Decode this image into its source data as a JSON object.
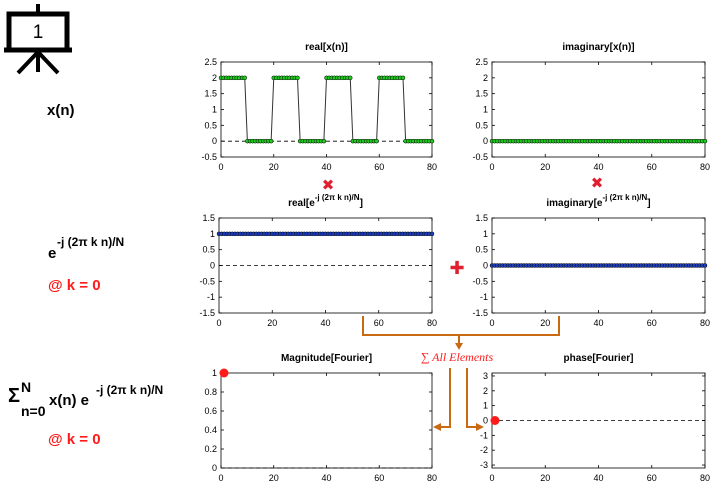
{
  "slide": {
    "number": "1"
  },
  "row_labels": {
    "signal": "x(n)",
    "kernel_base": "e",
    "kernel_exp": "-j (2π k n)/N",
    "k_note_1": "@ k = 0",
    "sum_sigma": "Σ",
    "sum_upper": "N",
    "sum_lower": "n=0",
    "sum_body": "x(n) e",
    "sum_exp": "-j (2π k n)/N",
    "k_note_2": "@ k = 0"
  },
  "operators": {
    "multiply": "✖",
    "add": "✚",
    "sum_all": "∑ All Elements"
  },
  "colors": {
    "green_marker": "#20cc20",
    "blue_marker": "#1f3fbf",
    "red_accent": "#ff1a1a",
    "arrow": "#c96a12",
    "line": "#333333"
  },
  "chart_data": [
    {
      "id": "real_x",
      "type": "line",
      "title": "real[x(n)]",
      "x_ticks": [
        "0",
        "20",
        "40",
        "60",
        "80"
      ],
      "y_ticks": [
        "2.5",
        "2",
        "1.5",
        "1",
        "0.5",
        "0",
        "-0.5"
      ],
      "xlim": [
        0,
        80
      ],
      "ylim": [
        -0.5,
        2.5
      ],
      "series": [
        {
          "x": [
            0,
            1,
            2,
            3,
            4,
            5,
            6,
            7,
            8,
            9,
            10,
            11,
            12,
            13,
            14,
            15,
            16,
            17,
            18,
            19,
            20,
            21,
            22,
            23,
            24,
            25,
            26,
            27,
            28,
            29,
            30,
            31,
            32,
            33,
            34,
            35,
            36,
            37,
            38,
            39,
            40,
            41,
            42,
            43,
            44,
            45,
            46,
            47,
            48,
            49,
            50,
            51,
            52,
            53,
            54,
            55,
            56,
            57,
            58,
            59,
            60,
            61,
            62,
            63,
            64,
            65,
            66,
            67,
            68,
            69,
            70,
            71,
            72,
            73,
            74,
            75,
            76,
            77,
            78,
            79,
            80
          ],
          "y": [
            2,
            2,
            2,
            2,
            2,
            2,
            2,
            2,
            2,
            2,
            0,
            0,
            0,
            0,
            0,
            0,
            0,
            0,
            0,
            0,
            2,
            2,
            2,
            2,
            2,
            2,
            2,
            2,
            2,
            2,
            0,
            0,
            0,
            0,
            0,
            0,
            0,
            0,
            0,
            0,
            2,
            2,
            2,
            2,
            2,
            2,
            2,
            2,
            2,
            2,
            0,
            0,
            0,
            0,
            0,
            0,
            0,
            0,
            0,
            0,
            2,
            2,
            2,
            2,
            2,
            2,
            2,
            2,
            2,
            2,
            0,
            0,
            0,
            0,
            0,
            0,
            0,
            0,
            0,
            0,
            0
          ],
          "marker": "green"
        }
      ]
    },
    {
      "id": "imag_x",
      "type": "line",
      "title": "imaginary[x(n)]",
      "x_ticks": [
        "0",
        "20",
        "40",
        "60",
        "80"
      ],
      "y_ticks": [
        "2.5",
        "2",
        "1.5",
        "1",
        "0.5",
        "0",
        "-0.5"
      ],
      "xlim": [
        0,
        80
      ],
      "ylim": [
        -0.5,
        2.5
      ],
      "series": [
        {
          "x": [
            0,
            1,
            2,
            3,
            4,
            5,
            6,
            7,
            8,
            9,
            10,
            11,
            12,
            13,
            14,
            15,
            16,
            17,
            18,
            19,
            20,
            21,
            22,
            23,
            24,
            25,
            26,
            27,
            28,
            29,
            30,
            31,
            32,
            33,
            34,
            35,
            36,
            37,
            38,
            39,
            40,
            41,
            42,
            43,
            44,
            45,
            46,
            47,
            48,
            49,
            50,
            51,
            52,
            53,
            54,
            55,
            56,
            57,
            58,
            59,
            60,
            61,
            62,
            63,
            64,
            65,
            66,
            67,
            68,
            69,
            70,
            71,
            72,
            73,
            74,
            75,
            76,
            77,
            78,
            79,
            80
          ],
          "y": [
            0,
            0,
            0,
            0,
            0,
            0,
            0,
            0,
            0,
            0,
            0,
            0,
            0,
            0,
            0,
            0,
            0,
            0,
            0,
            0,
            0,
            0,
            0,
            0,
            0,
            0,
            0,
            0,
            0,
            0,
            0,
            0,
            0,
            0,
            0,
            0,
            0,
            0,
            0,
            0,
            0,
            0,
            0,
            0,
            0,
            0,
            0,
            0,
            0,
            0,
            0,
            0,
            0,
            0,
            0,
            0,
            0,
            0,
            0,
            0,
            0,
            0,
            0,
            0,
            0,
            0,
            0,
            0,
            0,
            0,
            0,
            0,
            0,
            0,
            0,
            0,
            0,
            0,
            0,
            0,
            0
          ],
          "marker": "green"
        }
      ]
    },
    {
      "id": "real_e",
      "type": "line",
      "title_base": "real[e",
      "title_exp": "-j (2π k n)/N",
      "title_end": "]",
      "x_ticks": [
        "0",
        "20",
        "40",
        "60",
        "80"
      ],
      "y_ticks": [
        "1.5",
        "1",
        "0.5",
        "0",
        "-0.5",
        "-1",
        "-1.5"
      ],
      "xlim": [
        0,
        80
      ],
      "ylim": [
        -1.5,
        1.5
      ],
      "series": [
        {
          "x": [
            0,
            1,
            2,
            3,
            4,
            5,
            6,
            7,
            8,
            9,
            10,
            11,
            12,
            13,
            14,
            15,
            16,
            17,
            18,
            19,
            20,
            21,
            22,
            23,
            24,
            25,
            26,
            27,
            28,
            29,
            30,
            31,
            32,
            33,
            34,
            35,
            36,
            37,
            38,
            39,
            40,
            41,
            42,
            43,
            44,
            45,
            46,
            47,
            48,
            49,
            50,
            51,
            52,
            53,
            54,
            55,
            56,
            57,
            58,
            59,
            60,
            61,
            62,
            63,
            64,
            65,
            66,
            67,
            68,
            69,
            70,
            71,
            72,
            73,
            74,
            75,
            76,
            77,
            78,
            79,
            80
          ],
          "y": [
            1,
            1,
            1,
            1,
            1,
            1,
            1,
            1,
            1,
            1,
            1,
            1,
            1,
            1,
            1,
            1,
            1,
            1,
            1,
            1,
            1,
            1,
            1,
            1,
            1,
            1,
            1,
            1,
            1,
            1,
            1,
            1,
            1,
            1,
            1,
            1,
            1,
            1,
            1,
            1,
            1,
            1,
            1,
            1,
            1,
            1,
            1,
            1,
            1,
            1,
            1,
            1,
            1,
            1,
            1,
            1,
            1,
            1,
            1,
            1,
            1,
            1,
            1,
            1,
            1,
            1,
            1,
            1,
            1,
            1,
            1,
            1,
            1,
            1,
            1,
            1,
            1,
            1,
            1,
            1,
            1
          ],
          "marker": "blue"
        }
      ]
    },
    {
      "id": "imag_e",
      "type": "line",
      "title_base": "imaginary[e",
      "title_exp": "-j (2π k n)/N",
      "title_end": "]",
      "x_ticks": [
        "0",
        "20",
        "40",
        "60",
        "80"
      ],
      "y_ticks": [
        "1.5",
        "1",
        "0.5",
        "0",
        "-0.5",
        "-1",
        "-1.5"
      ],
      "xlim": [
        0,
        80
      ],
      "ylim": [
        -1.5,
        1.5
      ],
      "series": [
        {
          "x": [
            0,
            1,
            2,
            3,
            4,
            5,
            6,
            7,
            8,
            9,
            10,
            11,
            12,
            13,
            14,
            15,
            16,
            17,
            18,
            19,
            20,
            21,
            22,
            23,
            24,
            25,
            26,
            27,
            28,
            29,
            30,
            31,
            32,
            33,
            34,
            35,
            36,
            37,
            38,
            39,
            40,
            41,
            42,
            43,
            44,
            45,
            46,
            47,
            48,
            49,
            50,
            51,
            52,
            53,
            54,
            55,
            56,
            57,
            58,
            59,
            60,
            61,
            62,
            63,
            64,
            65,
            66,
            67,
            68,
            69,
            70,
            71,
            72,
            73,
            74,
            75,
            76,
            77,
            78,
            79,
            80
          ],
          "y": [
            0,
            0,
            0,
            0,
            0,
            0,
            0,
            0,
            0,
            0,
            0,
            0,
            0,
            0,
            0,
            0,
            0,
            0,
            0,
            0,
            0,
            0,
            0,
            0,
            0,
            0,
            0,
            0,
            0,
            0,
            0,
            0,
            0,
            0,
            0,
            0,
            0,
            0,
            0,
            0,
            0,
            0,
            0,
            0,
            0,
            0,
            0,
            0,
            0,
            0,
            0,
            0,
            0,
            0,
            0,
            0,
            0,
            0,
            0,
            0,
            0,
            0,
            0,
            0,
            0,
            0,
            0,
            0,
            0,
            0,
            0,
            0,
            0,
            0,
            0,
            0,
            0,
            0,
            0,
            0,
            0
          ],
          "marker": "blue"
        }
      ]
    },
    {
      "id": "magnitude",
      "type": "scatter",
      "title": "Magnitude[Fourier]",
      "x_ticks": [
        "0",
        "20",
        "40",
        "60",
        "80"
      ],
      "y_ticks": [
        "1",
        "0.8",
        "0.6",
        "0.4",
        "0.2",
        "0"
      ],
      "xlim": [
        0,
        80
      ],
      "ylim": [
        0,
        1
      ],
      "series": [
        {
          "x": [
            0
          ],
          "y": [
            1
          ],
          "marker": "red"
        }
      ]
    },
    {
      "id": "phase",
      "type": "scatter",
      "title": "phase[Fourier]",
      "x_ticks": [
        "0",
        "20",
        "40",
        "60",
        "80"
      ],
      "y_ticks": [
        "3",
        "2",
        "1",
        "0",
        "-1",
        "-2",
        "-3"
      ],
      "xlim": [
        0,
        80
      ],
      "ylim": [
        -3.2,
        3.2
      ],
      "series": [
        {
          "x": [
            0
          ],
          "y": [
            0
          ],
          "marker": "red"
        }
      ]
    }
  ]
}
